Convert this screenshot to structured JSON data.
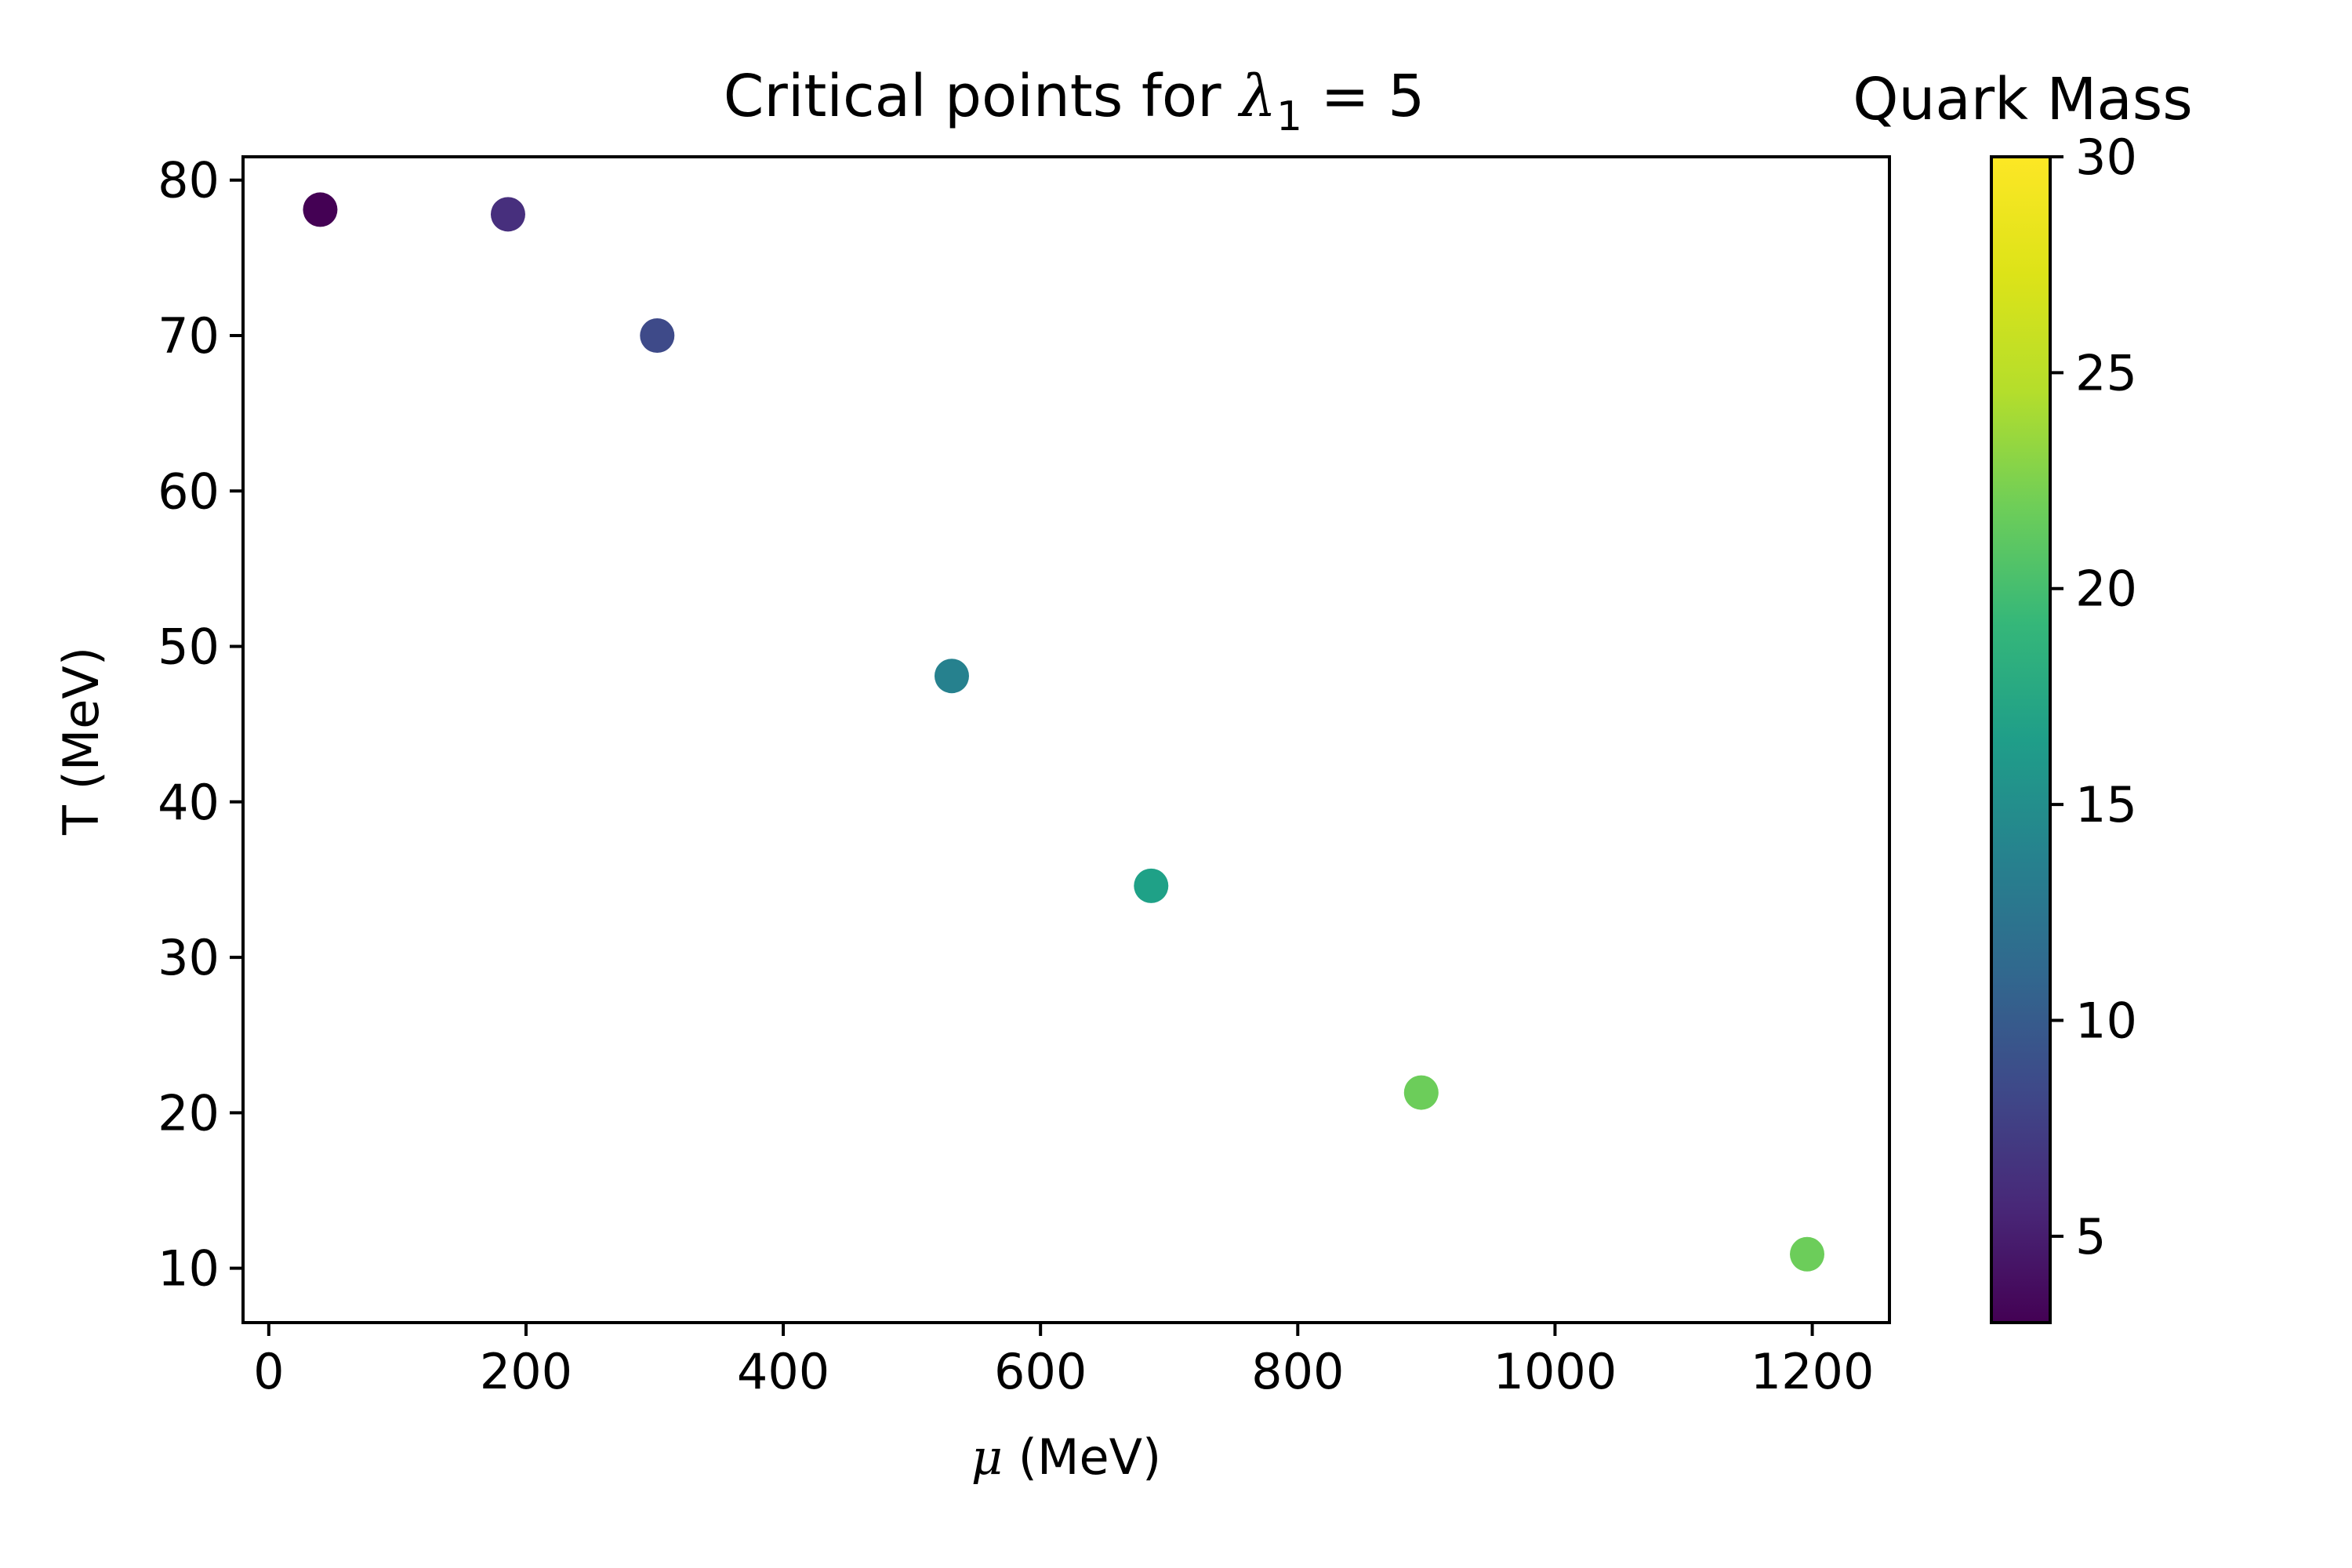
{
  "chart_data": {
    "type": "scatter",
    "title_prefix": "Critical points for ",
    "title_symbol": "λ",
    "title_subscript": "1",
    "title_suffix": " = 5",
    "xlabel_symbol": "μ",
    "xlabel_unit": " (MeV)",
    "ylabel": "T (MeV)",
    "xlim": [
      -20,
      1260
    ],
    "ylim": [
      6.5,
      81.5
    ],
    "xticks": [
      0,
      200,
      400,
      600,
      800,
      1000,
      1200
    ],
    "yticks": [
      10,
      20,
      30,
      40,
      50,
      60,
      70,
      80
    ],
    "grid": false,
    "colorbar": {
      "label": "Quark Mass",
      "colormap": "viridis",
      "range": [
        3,
        30
      ],
      "ticks": [
        5,
        10,
        15,
        20,
        25,
        30
      ]
    },
    "points": [
      {
        "x": 40,
        "y": 78.1,
        "c": 3.0,
        "color": "#440154"
      },
      {
        "x": 186,
        "y": 77.8,
        "c": 6.0,
        "color": "#472f7d"
      },
      {
        "x": 302,
        "y": 70.0,
        "c": 9.0,
        "color": "#3e4a89"
      },
      {
        "x": 531,
        "y": 48.1,
        "c": 15.0,
        "color": "#26818e"
      },
      {
        "x": 686,
        "y": 34.6,
        "c": 19.0,
        "color": "#1fa187"
      },
      {
        "x": 896,
        "y": 21.3,
        "c": 25.0,
        "color": "#6ccd5a"
      },
      {
        "x": 1196,
        "y": 10.9,
        "c": 25.0,
        "color": "#6ccd5a"
      }
    ]
  }
}
